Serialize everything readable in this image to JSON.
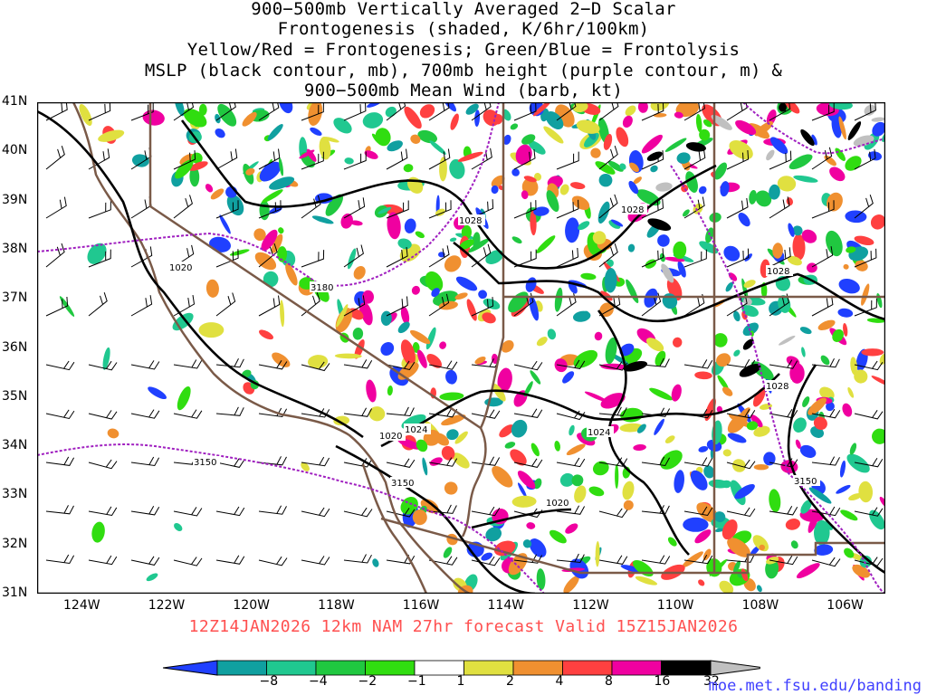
{
  "title": {
    "line1": "900−500mb Vertically Averaged 2−D Scalar",
    "line2": "Frontogenesis (shaded, K/6hr/100km)",
    "line3": "Yellow/Red = Frontogenesis;  Green/Blue = Frontolysis",
    "line4": "MSLP (black contour, mb), 700mb height (purple contour, m) &",
    "line5": "900−500mb Mean Wind (barb, kt)"
  },
  "map": {
    "lon_range": [
      -125,
      -105
    ],
    "lat_range": [
      31,
      41
    ],
    "lat_ticks": [
      "41N",
      "40N",
      "39N",
      "38N",
      "37N",
      "36N",
      "35N",
      "34N",
      "33N",
      "32N",
      "31N"
    ],
    "lon_ticks": [
      "124W",
      "122W",
      "120W",
      "118W",
      "116W",
      "114W",
      "112W",
      "110W",
      "108W",
      "106W"
    ],
    "mslp_labels": [
      "1028",
      "1028",
      "1028",
      "1028",
      "1020",
      "1024",
      "1020",
      "1024",
      "1020"
    ],
    "height_labels": [
      "3180",
      "3150",
      "3150",
      "3150"
    ],
    "colors": {
      "mslp_contour": "#000000",
      "height_contour": "#a020c0",
      "border": "#7a5a48",
      "state_border": "#7a5a48"
    }
  },
  "footer": {
    "forecast": "12Z14JAN2026 12km NAM 27hr forecast Valid 15Z15JAN2026"
  },
  "credit": "moe.met.fsu.edu/banding",
  "colorbar": {
    "labels": [
      "−8",
      "−4",
      "−2",
      "−1",
      "1",
      "2",
      "4",
      "8",
      "16",
      "32"
    ],
    "colors": [
      "#2040ff",
      "#10a0a0",
      "#20c890",
      "#20c840",
      "#30dd10",
      "#ffffff",
      "#e0e040",
      "#f09030",
      "#ff4040",
      "#f000a0",
      "#000000",
      "#c0c0c0"
    ]
  }
}
